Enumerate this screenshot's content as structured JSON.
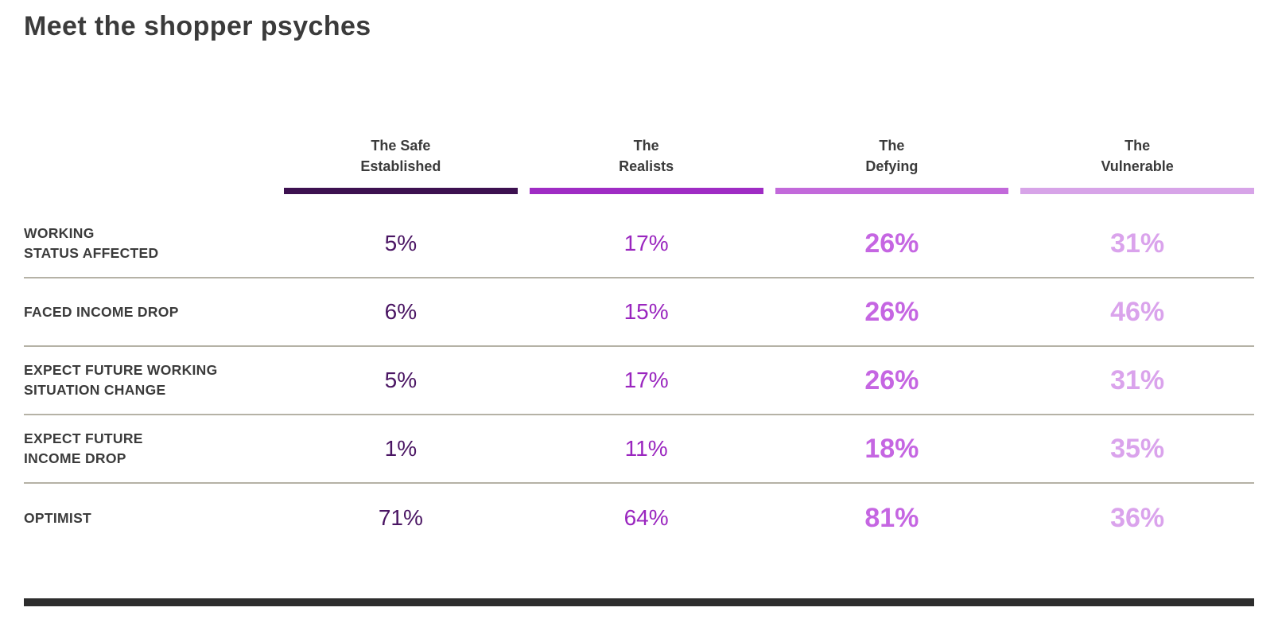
{
  "page": {
    "title": "Meet the shopper psyches"
  },
  "table": {
    "columns": [
      {
        "label": "The Safe\nEstablished",
        "bar_color": "#3d1150",
        "value_color": "#4a1563"
      },
      {
        "label": "The\nRealists",
        "bar_color": "#9f2cc4",
        "value_color": "#9a26bf"
      },
      {
        "label": "The\nDefying",
        "bar_color": "#c269da",
        "value_color": "#c566e2"
      },
      {
        "label": "The\nVulnerable",
        "bar_color": "#d7a4e8",
        "value_color": "#daa3ec"
      }
    ],
    "rows": [
      {
        "label": "WORKING\nSTATUS AFFECTED",
        "values": [
          "5%",
          "17%",
          "26%",
          "31%"
        ]
      },
      {
        "label": "FACED INCOME DROP",
        "values": [
          "6%",
          "15%",
          "26%",
          "46%"
        ]
      },
      {
        "label": "EXPECT FUTURE WORKING\nSITUATION CHANGE",
        "values": [
          "5%",
          "17%",
          "26%",
          "31%"
        ]
      },
      {
        "label": "EXPECT FUTURE\nINCOME DROP",
        "values": [
          "1%",
          "11%",
          "18%",
          "35%"
        ]
      },
      {
        "label": "OPTIMIST",
        "values": [
          "71%",
          "64%",
          "81%",
          "36%"
        ]
      }
    ]
  },
  "chart_data": {
    "type": "table",
    "title": "Meet the shopper psyches",
    "categories": [
      "The Safe Established",
      "The Realists",
      "The Defying",
      "The Vulnerable"
    ],
    "series": [
      {
        "name": "Working status affected",
        "values": [
          5,
          17,
          26,
          31
        ]
      },
      {
        "name": "Faced income drop",
        "values": [
          6,
          15,
          26,
          46
        ]
      },
      {
        "name": "Expect future working situation change",
        "values": [
          5,
          17,
          26,
          31
        ]
      },
      {
        "name": "Expect future income drop",
        "values": [
          1,
          11,
          18,
          35
        ]
      },
      {
        "name": "Optimist",
        "values": [
          71,
          64,
          81,
          36
        ]
      }
    ],
    "unit": "%",
    "legend_position": "none",
    "grid": "row-dividers"
  },
  "colors": {
    "text_dark": "#3b3b3b",
    "divider": "#b5b2a6",
    "bottom_bar": "#2d2d2d",
    "background": "#ffffff"
  }
}
